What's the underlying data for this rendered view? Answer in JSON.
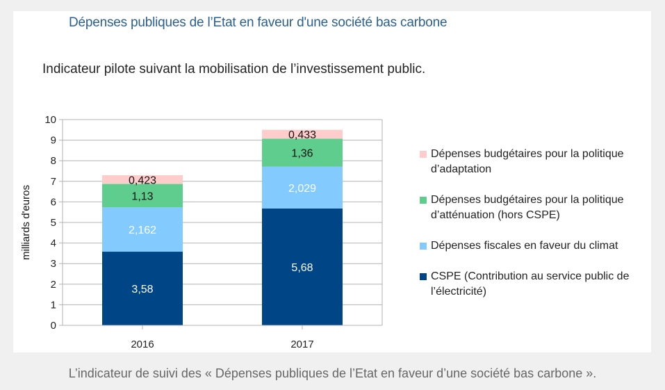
{
  "header": {
    "title": "Dépenses publiques de l’Etat en faveur d'une société bas carbone",
    "subtitle": "Indicateur pilote suivant la mobilisation de l’investissement public."
  },
  "caption": "L’indicateur de suivi des « Dépenses publiques de l’Etat en faveur d’une société bas carbone ».",
  "chart_data": {
    "type": "bar",
    "stacked": true,
    "title": "Dépenses publiques de l’Etat en faveur d'une société bas carbone",
    "subtitle": "Indicateur pilote suivant la mobilisation de l’investissement public.",
    "xlabel": "",
    "ylabel": "milliards d'euros",
    "ylim": [
      0,
      10
    ],
    "yticks": [
      0,
      1,
      2,
      3,
      4,
      5,
      6,
      7,
      8,
      9,
      10
    ],
    "grid": true,
    "legend_position": "right",
    "categories": [
      "2016",
      "2017"
    ],
    "series": [
      {
        "name": "CSPE (Contribution au service public de l’électricité)",
        "values": [
          3.58,
          5.68
        ],
        "labels": [
          "3,58",
          "5,68"
        ],
        "color": "#004586",
        "label_color": "#ffffff"
      },
      {
        "name": "Dépenses fiscales en faveur du climat",
        "values": [
          2.162,
          2.029
        ],
        "labels": [
          "2,162",
          "2,029"
        ],
        "color": "#83caff",
        "label_color": "#ffffff"
      },
      {
        "name": "Dépenses budgétaires pour la politique d’atténuation (hors CSPE)",
        "values": [
          1.13,
          1.36
        ],
        "labels": [
          "1,13",
          "1,36"
        ],
        "color": "#5ecd8e",
        "label_color": "#111111"
      },
      {
        "name": "Dépenses budgétaires pour la politique d’adaptation",
        "values": [
          0.423,
          0.433
        ],
        "labels": [
          "0,423",
          "0,433"
        ],
        "color": "#ffcccc",
        "label_color": "#111111"
      }
    ]
  }
}
